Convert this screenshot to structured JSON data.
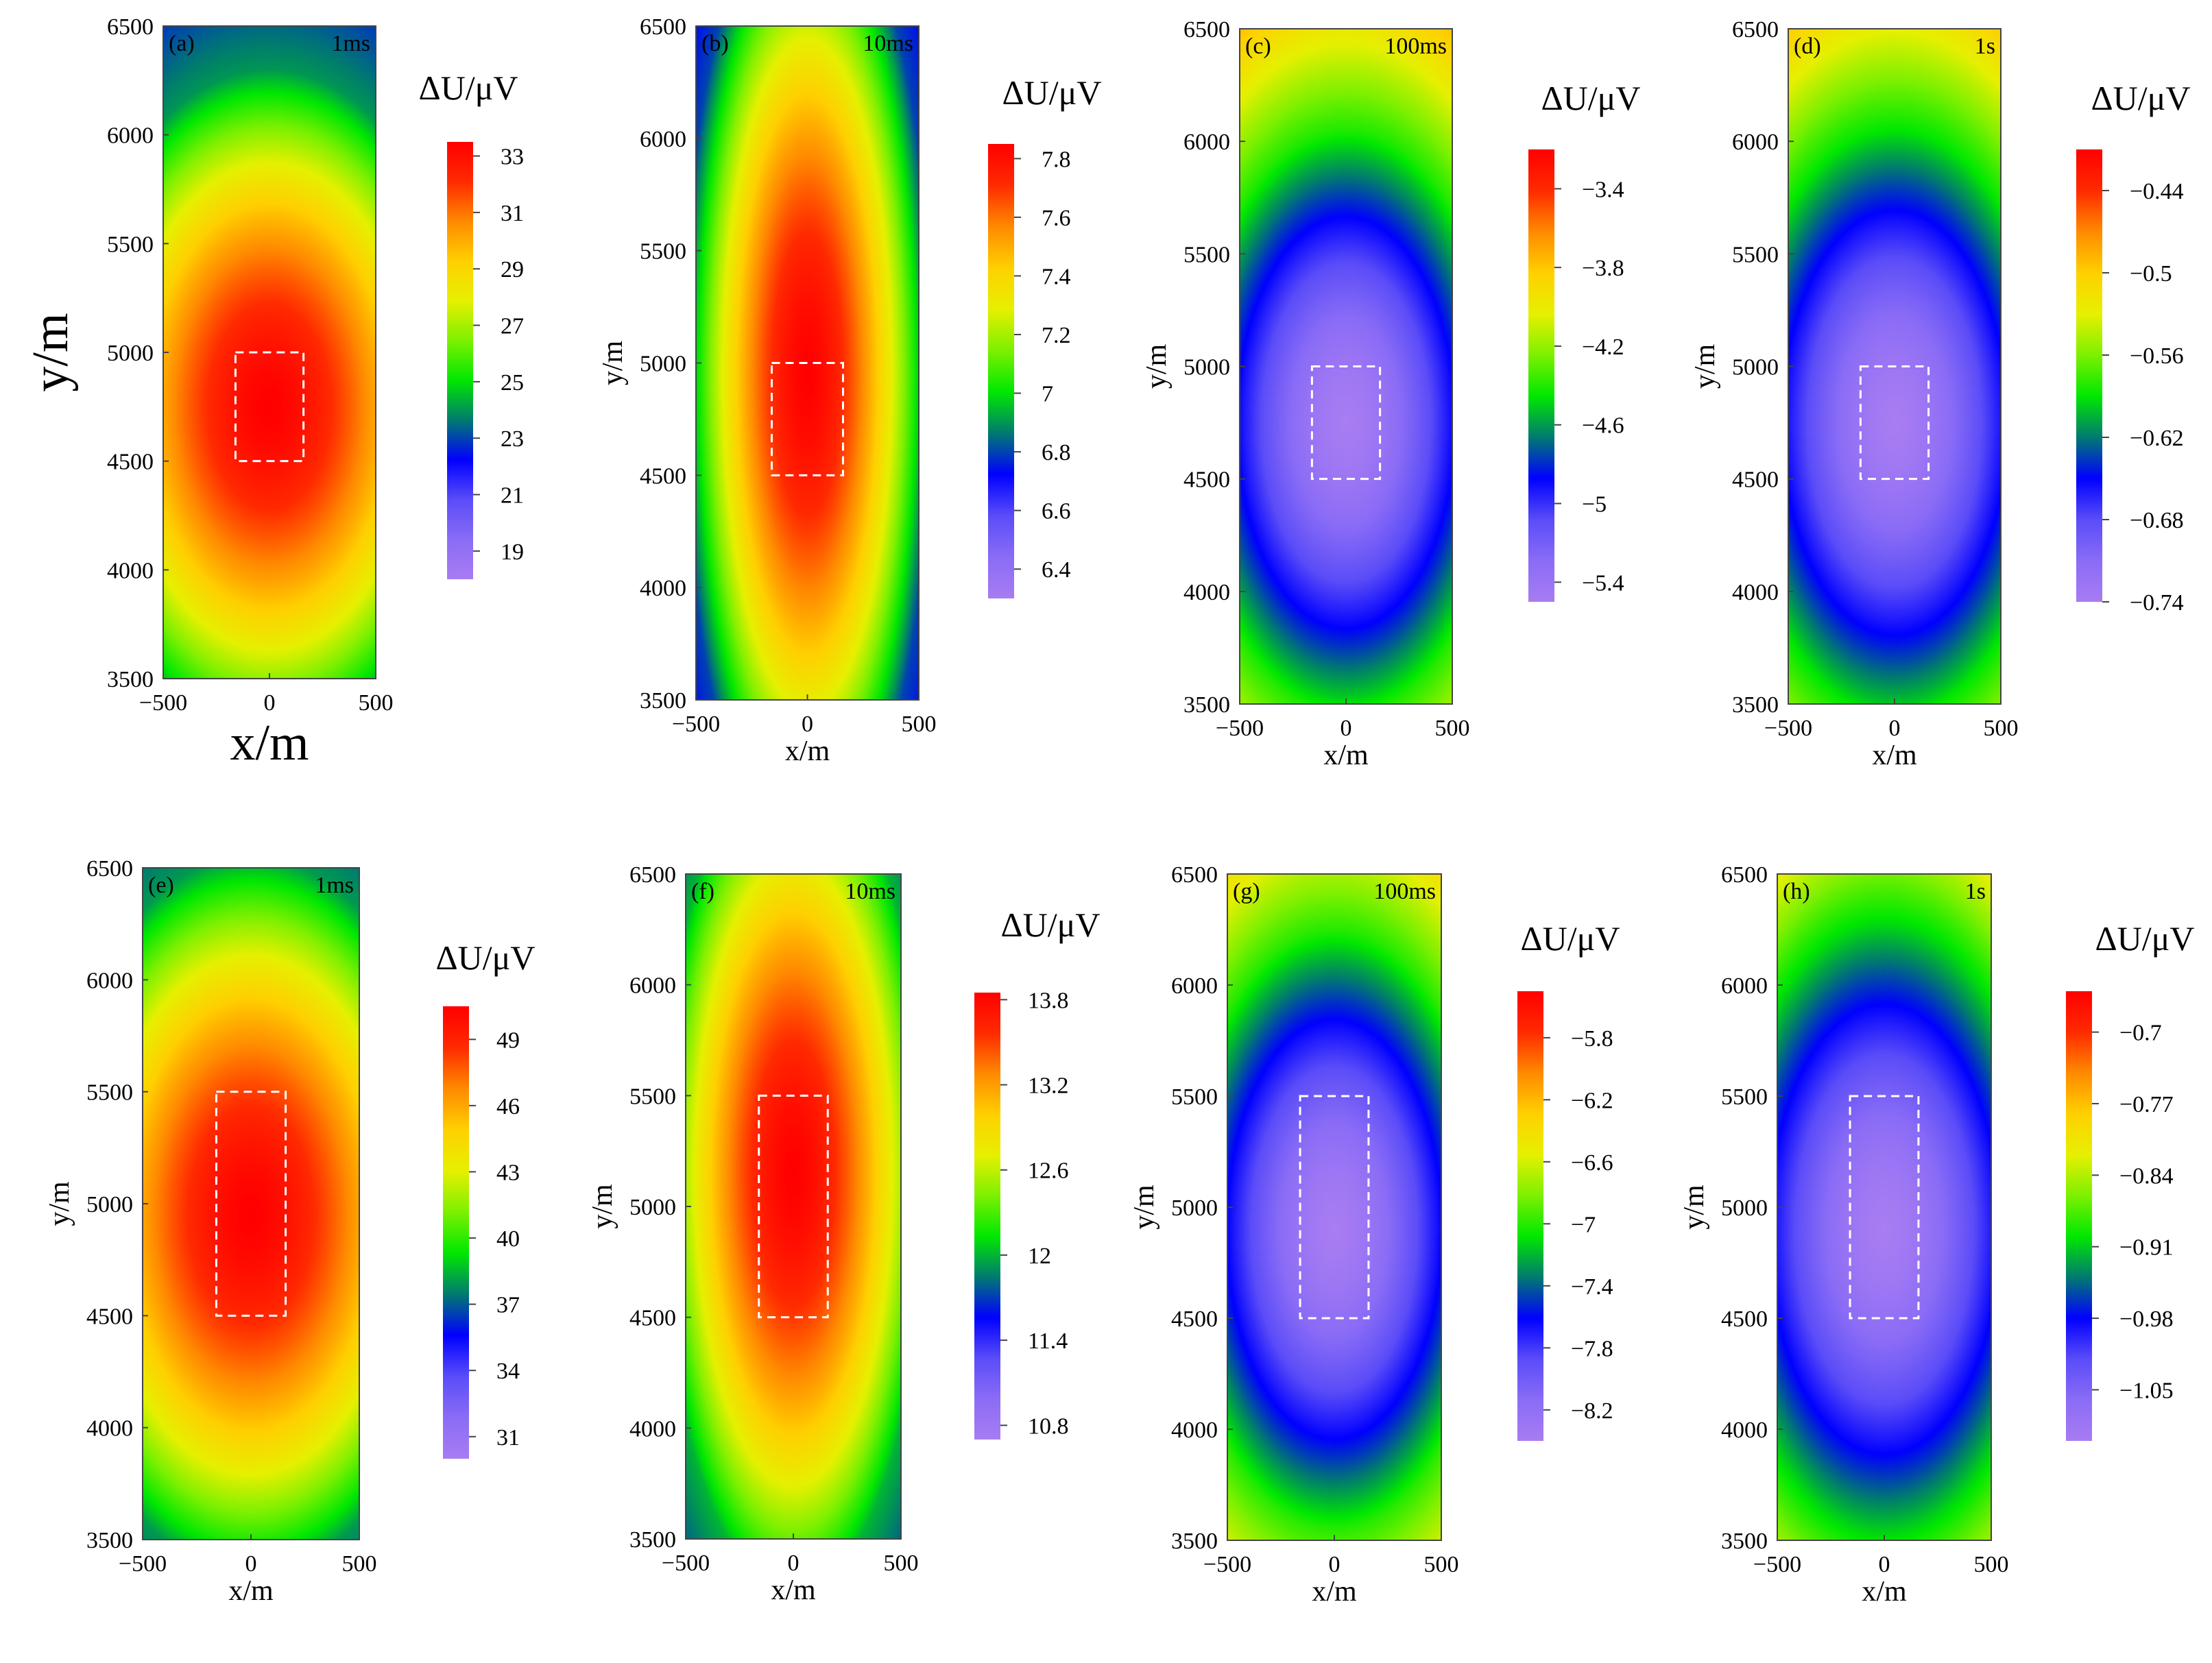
{
  "figure": {
    "colormap": [
      "#a87cf2",
      "#8a6cf6",
      "#5a4cf8",
      "#0000ff",
      "#007a70",
      "#00e800",
      "#7cf000",
      "#e6f000",
      "#ffd000",
      "#ff8a00",
      "#ff2a00",
      "#ff0000"
    ]
  },
  "chart_data": [
    {
      "type": "heatmap",
      "panel": "(a)",
      "time": "1ms",
      "xlabel": "x/m",
      "ylabel": "y/m",
      "xlim": [
        -500,
        500
      ],
      "ylim": [
        3500,
        6500
      ],
      "xticks": [
        "−500",
        "0",
        "500"
      ],
      "yticks": [
        "3500",
        "4000",
        "4500",
        "5000",
        "5500",
        "6000",
        "6500"
      ],
      "colorbar_label": "ΔU/μV",
      "colorbar_ticks": [
        "19",
        "21",
        "23",
        "25",
        "27",
        "29",
        "31",
        "33"
      ],
      "value_range": [
        18,
        33.5
      ],
      "field": {
        "polarity": "max",
        "cy": 4750,
        "ry": 1550,
        "rx": 950,
        "edge_value": 24,
        "outer_value": 20
      },
      "source_box": {
        "x": [
          -160,
          160
        ],
        "y": [
          4500,
          5000
        ]
      }
    },
    {
      "type": "heatmap",
      "panel": "(b)",
      "time": "10ms",
      "xlabel": "x/m",
      "ylabel": "y/m",
      "xlim": [
        -500,
        500
      ],
      "ylim": [
        3500,
        6500
      ],
      "xticks": [
        "−500",
        "0",
        "500"
      ],
      "yticks": [
        "3500",
        "4000",
        "4500",
        "5000",
        "5500",
        "6000",
        "6500"
      ],
      "colorbar_label": "ΔU/μV",
      "colorbar_ticks": [
        "6.4",
        "6.6",
        "6.8",
        "7",
        "7.2",
        "7.4",
        "7.6",
        "7.8"
      ],
      "value_range": [
        6.3,
        7.85
      ],
      "field": {
        "polarity": "max",
        "cy": 4950,
        "ry": 2200,
        "rx": 560,
        "edge_value": 6.8,
        "outer_value": 6.4
      },
      "source_box": {
        "x": [
          -160,
          160
        ],
        "y": [
          4500,
          5000
        ]
      }
    },
    {
      "type": "heatmap",
      "panel": "(c)",
      "time": "100ms",
      "xlabel": "x/m",
      "ylabel": "y/m",
      "xlim": [
        -500,
        500
      ],
      "ylim": [
        3500,
        6500
      ],
      "xticks": [
        "−500",
        "0",
        "500"
      ],
      "yticks": [
        "3500",
        "4000",
        "4500",
        "5000",
        "5500",
        "6000",
        "6500"
      ],
      "colorbar_label": "ΔU/μV",
      "colorbar_ticks": [
        "−5.4",
        "−5",
        "−4.6",
        "−4.2",
        "−3.8",
        "−3.4"
      ],
      "value_range": [
        -5.5,
        -3.2
      ],
      "field": {
        "polarity": "min",
        "cy": 4750,
        "ry": 1300,
        "rx": 730,
        "edge_value": -4.4,
        "outer_value": -3.3
      },
      "source_box": {
        "x": [
          -160,
          160
        ],
        "y": [
          4500,
          5000
        ]
      }
    },
    {
      "type": "heatmap",
      "panel": "(d)",
      "time": "1s",
      "xlabel": "x/m",
      "ylabel": "y/m",
      "xlim": [
        -500,
        500
      ],
      "ylim": [
        3500,
        6500
      ],
      "xticks": [
        "−500",
        "0",
        "500"
      ],
      "yticks": [
        "3500",
        "4000",
        "4500",
        "5000",
        "5500",
        "6000",
        "6500"
      ],
      "colorbar_label": "ΔU/μV",
      "colorbar_ticks": [
        "−0.74",
        "−0.68",
        "−0.62",
        "−0.56",
        "−0.5",
        "−0.44"
      ],
      "value_range": [
        -0.74,
        -0.41
      ],
      "field": {
        "polarity": "min",
        "cy": 4750,
        "ry": 1300,
        "rx": 730,
        "edge_value": -0.59,
        "outer_value": -0.43
      },
      "source_box": {
        "x": [
          -160,
          160
        ],
        "y": [
          4500,
          5000
        ]
      }
    },
    {
      "type": "heatmap",
      "panel": "(e)",
      "time": "1ms",
      "xlabel": "x/m",
      "ylabel": "y/m",
      "xlim": [
        -500,
        500
      ],
      "ylim": [
        3500,
        6500
      ],
      "xticks": [
        "−500",
        "0",
        "500"
      ],
      "yticks": [
        "3500",
        "4000",
        "4500",
        "5000",
        "5500",
        "6000",
        "6500"
      ],
      "colorbar_label": "ΔU/μV",
      "colorbar_ticks": [
        "31",
        "34",
        "37",
        "40",
        "43",
        "46",
        "49"
      ],
      "value_range": [
        30,
        50.5
      ],
      "field": {
        "polarity": "max",
        "cy": 4950,
        "ry": 1600,
        "rx": 950,
        "edge_value": 38,
        "outer_value": 33
      },
      "source_box": {
        "x": [
          -160,
          160
        ],
        "y": [
          4500,
          5500
        ]
      }
    },
    {
      "type": "heatmap",
      "panel": "(f)",
      "time": "10ms",
      "xlabel": "x/m",
      "ylabel": "y/m",
      "xlim": [
        -500,
        500
      ],
      "ylim": [
        3500,
        6500
      ],
      "xticks": [
        "−500",
        "0",
        "500"
      ],
      "yticks": [
        "3500",
        "4000",
        "4500",
        "5000",
        "5500",
        "6000",
        "6500"
      ],
      "colorbar_label": "ΔU/μV",
      "colorbar_ticks": [
        "10.8",
        "11.4",
        "12",
        "12.6",
        "13.2",
        "13.8"
      ],
      "value_range": [
        10.7,
        13.85
      ],
      "field": {
        "polarity": "max",
        "cy": 5150,
        "ry": 1900,
        "rx": 620,
        "edge_value": 12.0,
        "outer_value": 11.0
      },
      "source_box": {
        "x": [
          -160,
          160
        ],
        "y": [
          4500,
          5500
        ]
      }
    },
    {
      "type": "heatmap",
      "panel": "(g)",
      "time": "100ms",
      "xlabel": "x/m",
      "ylabel": "y/m",
      "xlim": [
        -500,
        500
      ],
      "ylim": [
        3500,
        6500
      ],
      "xticks": [
        "−500",
        "0",
        "500"
      ],
      "yticks": [
        "3500",
        "4000",
        "4500",
        "5000",
        "5500",
        "6000",
        "6500"
      ],
      "colorbar_label": "ΔU/μV",
      "colorbar_ticks": [
        "−8.2",
        "−7.8",
        "−7.4",
        "−7",
        "−6.6",
        "−6.2",
        "−5.8"
      ],
      "value_range": [
        -8.4,
        -5.5
      ],
      "field": {
        "polarity": "min",
        "cy": 4900,
        "ry": 1350,
        "rx": 720,
        "edge_value": -7.0,
        "outer_value": -5.6
      },
      "source_box": {
        "x": [
          -160,
          160
        ],
        "y": [
          4500,
          5500
        ]
      }
    },
    {
      "type": "heatmap",
      "panel": "(h)",
      "time": "1s",
      "xlabel": "x/m",
      "ylabel": "y/m",
      "xlim": [
        -500,
        500
      ],
      "ylim": [
        3500,
        6500
      ],
      "xticks": [
        "−500",
        "0",
        "500"
      ],
      "yticks": [
        "3500",
        "4000",
        "4500",
        "5000",
        "5500",
        "6000",
        "6500"
      ],
      "colorbar_label": "ΔU/μV",
      "colorbar_ticks": [
        "−1.05",
        "−0.98",
        "−0.91",
        "−0.84",
        "−0.77",
        "−0.7"
      ],
      "value_range": [
        -1.1,
        -0.66
      ],
      "field": {
        "polarity": "min",
        "cy": 4900,
        "ry": 1350,
        "rx": 720,
        "edge_value": -0.91,
        "outer_value": -0.68
      },
      "source_box": {
        "x": [
          -160,
          160
        ],
        "y": [
          4500,
          5500
        ]
      }
    }
  ]
}
